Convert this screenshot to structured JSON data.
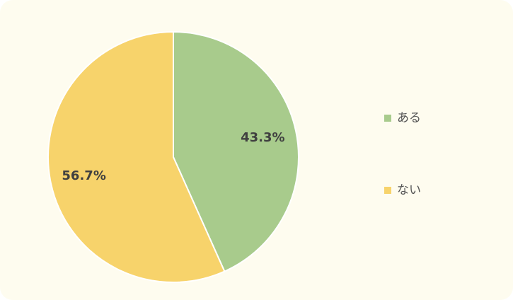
{
  "chart_data": {
    "type": "pie",
    "categories": [
      "ある",
      "ない"
    ],
    "values": [
      43.3,
      56.7
    ],
    "value_labels": [
      "43.3%",
      "56.7%"
    ],
    "colors": [
      "#a8cb8c",
      "#f7d36b"
    ],
    "legend": "right"
  }
}
